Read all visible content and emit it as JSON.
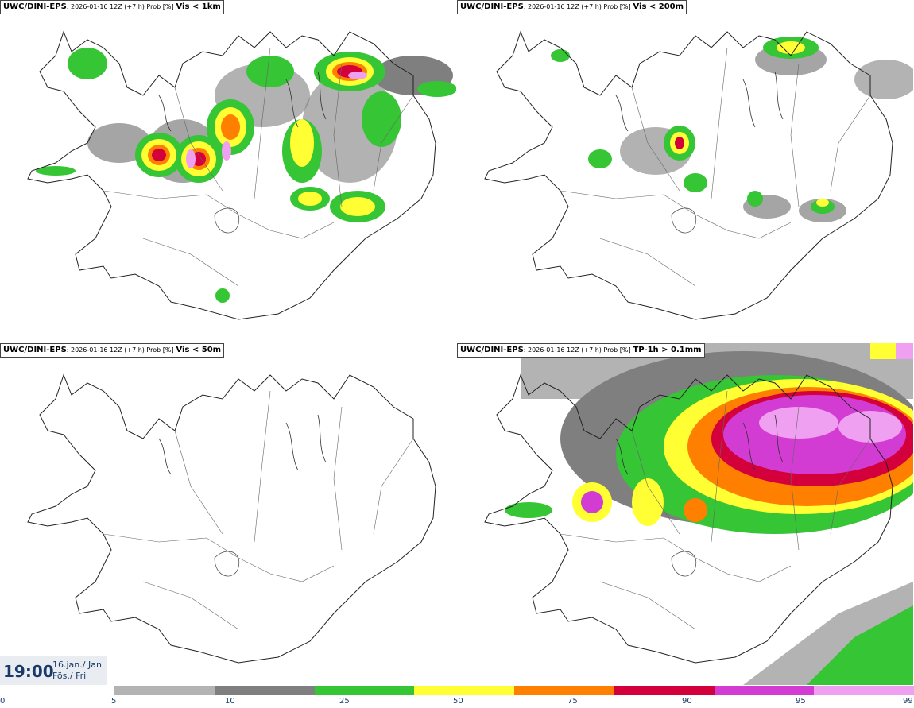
{
  "panels": [
    {
      "model": "UWC/DINI-EPS",
      "sub": ": 2026-01-16 12Z (+7 h) Prob [%]",
      "label": "Vis < 1km"
    },
    {
      "model": "UWC/DINI-EPS",
      "sub": ": 2026-01-16 12Z (+7 h) Prob [%]",
      "label": "Vis < 200m"
    },
    {
      "model": "UWC/DINI-EPS",
      "sub": ": 2026-01-16 12Z (+7 h) Prob [%]",
      "label": "Vis < 50m"
    },
    {
      "model": "UWC/DINI-EPS",
      "sub": ": 2026-01-16 12Z (+7 h) Prob [%]",
      "label": "TP-1h > 0.1mm"
    }
  ],
  "valid": {
    "time": "19:00",
    "date_line1": "16.jan./ Jan",
    "date_line2": "Fös./ Fri"
  },
  "colorbar": {
    "ticks": [
      "0",
      "5",
      "10",
      "25",
      "50",
      "75",
      "90",
      "95",
      "99"
    ],
    "colors": [
      "#b3b3b3",
      "#7f7f7f",
      "#35c535",
      "#ffff33",
      "#ff7f00",
      "#d4003c",
      "#d23cd2",
      "#f0a0f0"
    ]
  },
  "legend_colors": {
    "c5": "#b3b3b3",
    "c10": "#7f7f7f",
    "c25": "#35c535",
    "c50": "#ffff33",
    "c75": "#ff7f00",
    "c90": "#d4003c",
    "c95": "#d23cd2",
    "c99": "#f0a0f0"
  }
}
